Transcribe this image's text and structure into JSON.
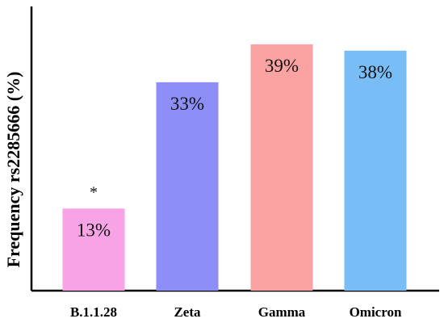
{
  "chart_data": {
    "type": "bar",
    "categories": [
      "B.1.1.28",
      "Zeta",
      "Gamma",
      "Omicron"
    ],
    "values": [
      13,
      33,
      39,
      38
    ],
    "data_labels": [
      "13%",
      "33%",
      "39%",
      "38%"
    ],
    "annotations": [
      "*",
      "",
      "",
      ""
    ],
    "colors": [
      "#f7a3e6",
      "#8d8ef8",
      "#fba3a3",
      "#79bdf7"
    ],
    "title": "",
    "xlabel": "",
    "ylabel": "Frequency rs2285666 (%)",
    "ylim": [
      0,
      45
    ],
    "grid": false,
    "legend": "none"
  }
}
